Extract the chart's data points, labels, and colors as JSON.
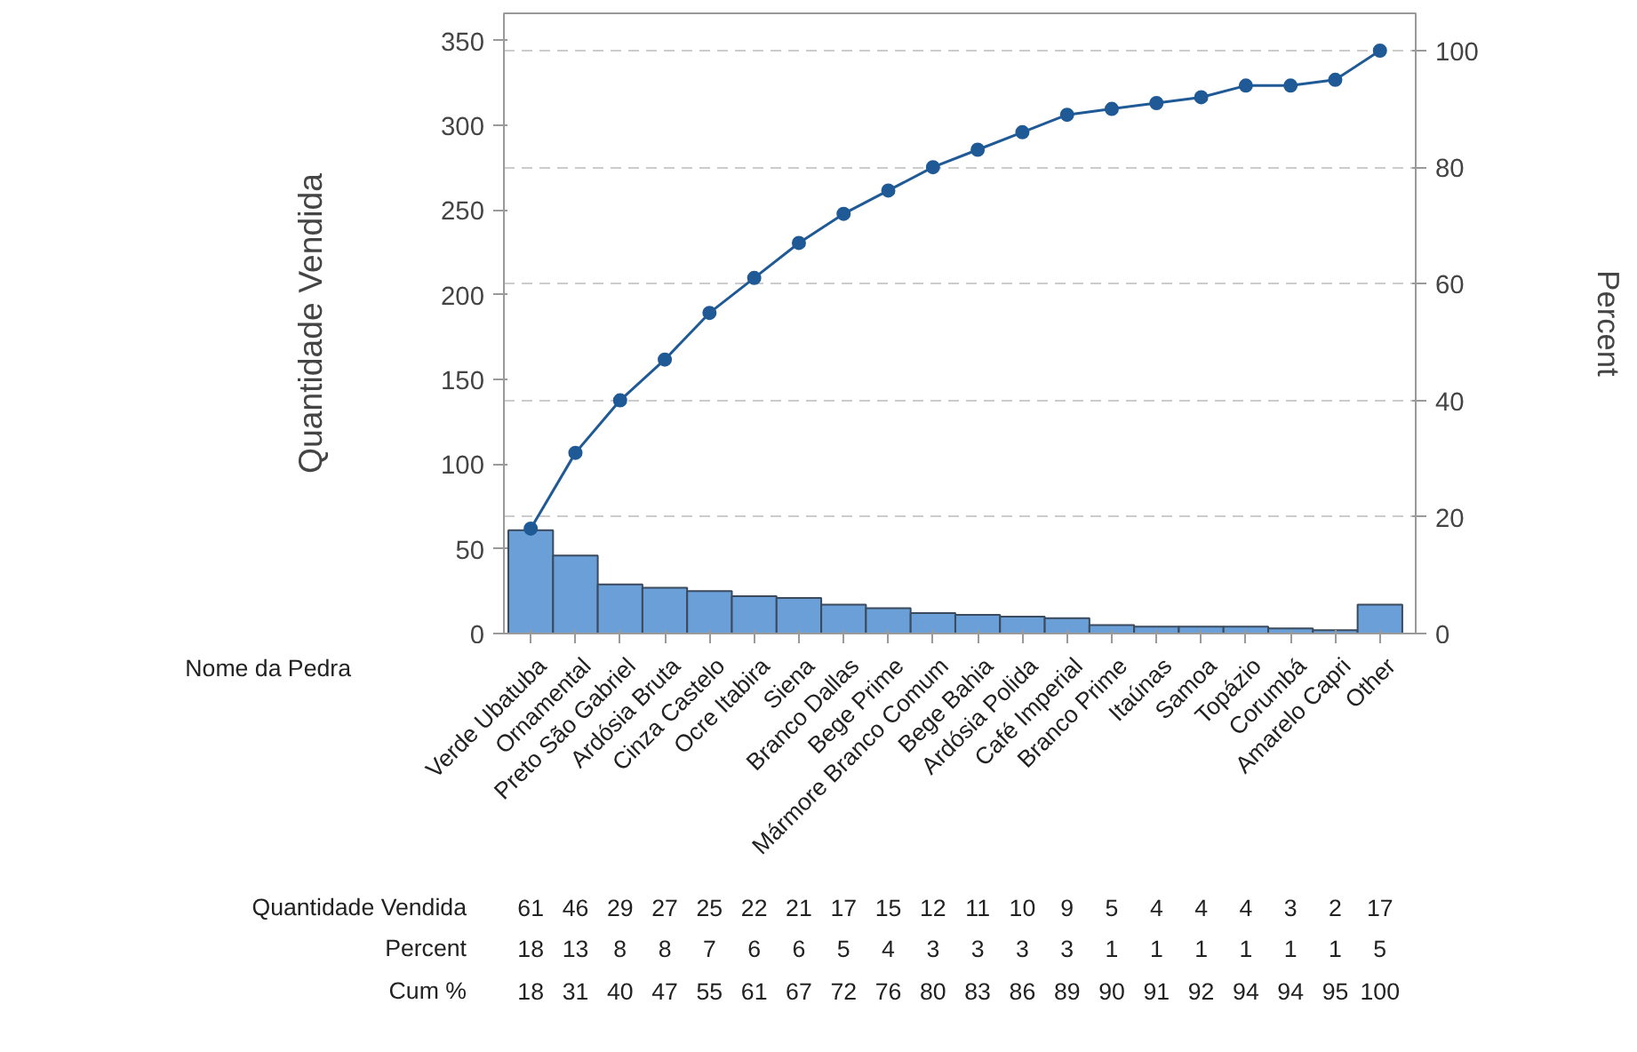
{
  "chart_data": {
    "type": "bar",
    "categories": [
      "Verde Ubatuba",
      "Ornamental",
      "Preto São Gabriel",
      "Ardósia Bruta",
      "Cinza Castelo",
      "Ocre Itabira",
      "Siena",
      "Branco Dallas",
      "Bege Prime",
      "Mármore Branco Comum",
      "Bege Bahia",
      "Ardósia Polida",
      "Café Imperial",
      "Branco Prime",
      "Itaúnas",
      "Samoa",
      "Topázio",
      "Corumbá",
      "Amarelo Capri",
      "Other"
    ],
    "xlabel": "Nome da Pedra",
    "ylabel": "Quantidade Vendida",
    "y2label": "Percent",
    "ylim": [
      0,
      366
    ],
    "yticks": [
      0,
      50,
      100,
      150,
      200,
      250,
      300,
      350
    ],
    "y2lim": [
      0,
      106.4
    ],
    "y2ticks": [
      0,
      20,
      40,
      60,
      80,
      100
    ],
    "grid": "y",
    "marker": "circle",
    "data_labels": true,
    "series": [
      {
        "color": "#6a9fd8",
        "values": [
          61,
          46,
          29,
          27,
          25,
          22,
          21,
          17,
          15,
          12,
          11,
          10,
          9,
          5,
          4,
          4,
          4,
          3,
          2,
          17
        ]
      },
      {
        "type": "line",
        "axis": "y2",
        "color": "#1f5a96",
        "values": [
          18,
          31,
          40,
          47,
          55,
          61,
          67,
          72,
          76,
          80,
          83,
          86,
          89,
          90,
          91,
          92,
          94,
          94,
          95,
          100
        ]
      }
    ],
    "annotations": [
      "Quantidade Vendida",
      "Percent",
      "Cum %",
      "18",
      "13",
      "8",
      "8",
      "7",
      "6",
      "6",
      "5",
      "4",
      "3",
      "3",
      "3",
      "3",
      "1",
      "1",
      "1",
      "1",
      "1",
      "1",
      "5"
    ]
  }
}
